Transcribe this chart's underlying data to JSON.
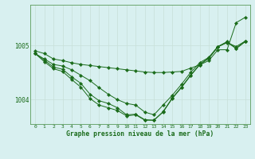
{
  "title": "Graphe pression niveau de la mer (hPa)",
  "bg_color": "#d8f0f0",
  "grid_color": "#c8e0d8",
  "line_color": "#1a6b1a",
  "marker_color": "#1a6b1a",
  "xlim": [
    -0.5,
    23.5
  ],
  "ylim": [
    1003.55,
    1005.75
  ],
  "yticks": [
    1004,
    1005
  ],
  "series1": [
    1004.9,
    1004.85,
    1004.75,
    1004.72,
    1004.68,
    1004.65,
    1004.63,
    1004.61,
    1004.59,
    1004.57,
    1004.55,
    1004.53,
    1004.51,
    1004.5,
    1004.5,
    1004.51,
    1004.52,
    1004.58,
    1004.64,
    1004.72,
    1004.92,
    1004.92,
    1005.42,
    1005.52
  ],
  "series2": [
    1004.85,
    1004.75,
    1004.65,
    1004.62,
    1004.55,
    1004.45,
    1004.35,
    1004.22,
    1004.1,
    1004.0,
    1003.93,
    1003.9,
    1003.77,
    1003.72,
    1003.9,
    1004.08,
    1004.28,
    1004.5,
    1004.68,
    1004.78,
    1004.98,
    1005.05,
    1004.98,
    1005.08
  ],
  "series3": [
    1004.85,
    1004.73,
    1004.6,
    1004.56,
    1004.42,
    1004.3,
    1004.1,
    1003.98,
    1003.93,
    1003.85,
    1003.72,
    1003.73,
    1003.63,
    1003.62,
    1003.78,
    1004.03,
    1004.23,
    1004.45,
    1004.65,
    1004.77,
    1004.98,
    1005.07,
    1004.95,
    1005.08
  ],
  "series4": [
    1004.85,
    1004.7,
    1004.57,
    1004.52,
    1004.37,
    1004.23,
    1004.02,
    1003.9,
    1003.85,
    1003.8,
    1003.7,
    1003.72,
    1003.62,
    1003.62,
    1003.77,
    1004.02,
    1004.22,
    1004.44,
    1004.64,
    1004.76,
    1004.97,
    1005.06,
    1004.94,
    1005.07
  ]
}
